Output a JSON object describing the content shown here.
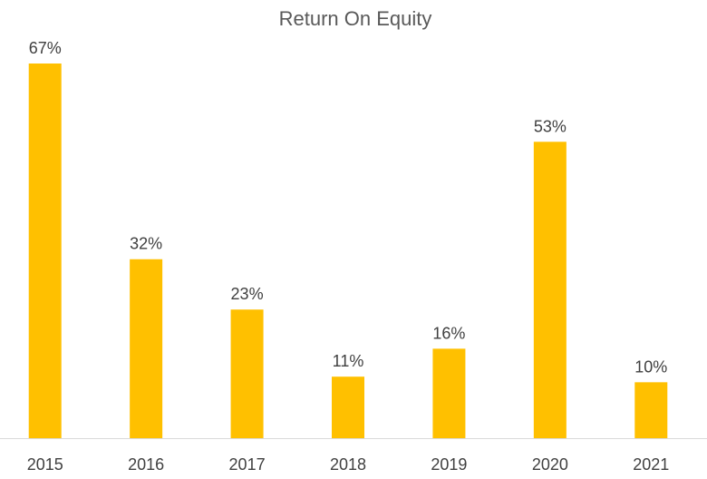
{
  "chart_data": {
    "type": "bar",
    "title": "Return On Equity",
    "categories": [
      "2015",
      "2016",
      "2017",
      "2018",
      "2019",
      "2020",
      "2021"
    ],
    "values": [
      67,
      32,
      23,
      11,
      16,
      53,
      10
    ],
    "data_labels": [
      "67%",
      "32%",
      "23%",
      "11%",
      "16%",
      "53%",
      "10%"
    ],
    "ylim": [
      0,
      67
    ],
    "grid": false,
    "legend": "none",
    "bar_color": "#FFC000",
    "axis_color": "#D9D9D9"
  }
}
